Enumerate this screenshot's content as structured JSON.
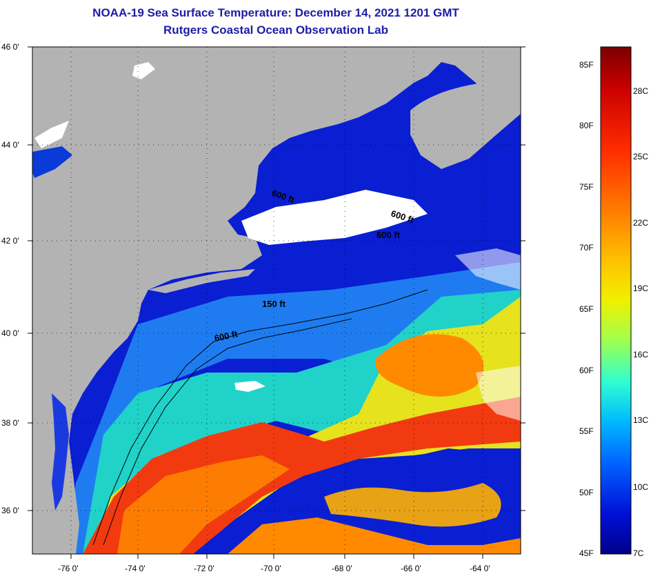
{
  "header": {
    "title_line1": "NOAA-19 Sea Surface Temperature:  December 14, 2021 1201 GMT",
    "title_line2": "Rutgers Coastal Ocean Observation Lab"
  },
  "map": {
    "latitude_labels": [
      "46 0'",
      "44 0'",
      "42 0'",
      "40 0'",
      "38 0'",
      "36 0'"
    ],
    "longitude_labels": [
      "-76 0'",
      "-74 0'",
      "-72 0'",
      "-70 0'",
      "-68 0'",
      "-66 0'",
      "-64 0'"
    ],
    "contour_labels": [
      "600 ft",
      "600 ft",
      "600 ft",
      "150 ft",
      "600 ft"
    ],
    "colors": {
      "land": "#b3b3b3",
      "cloud": "#ffffff",
      "cold_water": "#0a1ed2",
      "cool_water": "#1f7cf0",
      "mid_water": "#20d2c8",
      "warm_water": "#e6e21e",
      "hot_water": "#ff8a00",
      "gulf_stream": "#f23a10"
    }
  },
  "colorbar": {
    "fahrenheit_labels": [
      "85F",
      "80F",
      "75F",
      "70F",
      "65F",
      "60F",
      "55F",
      "50F",
      "45F"
    ],
    "celsius_labels": [
      "28C",
      "25C",
      "22C",
      "19C",
      "16C",
      "13C",
      "10C",
      "7C"
    ],
    "gradient_stops": [
      "#7a0000",
      "#c80000",
      "#ff2a00",
      "#ff7a00",
      "#ffc000",
      "#f0f000",
      "#9eff50",
      "#2fffd0",
      "#00b8ff",
      "#0064ff",
      "#0010d8",
      "#00008a"
    ]
  }
}
